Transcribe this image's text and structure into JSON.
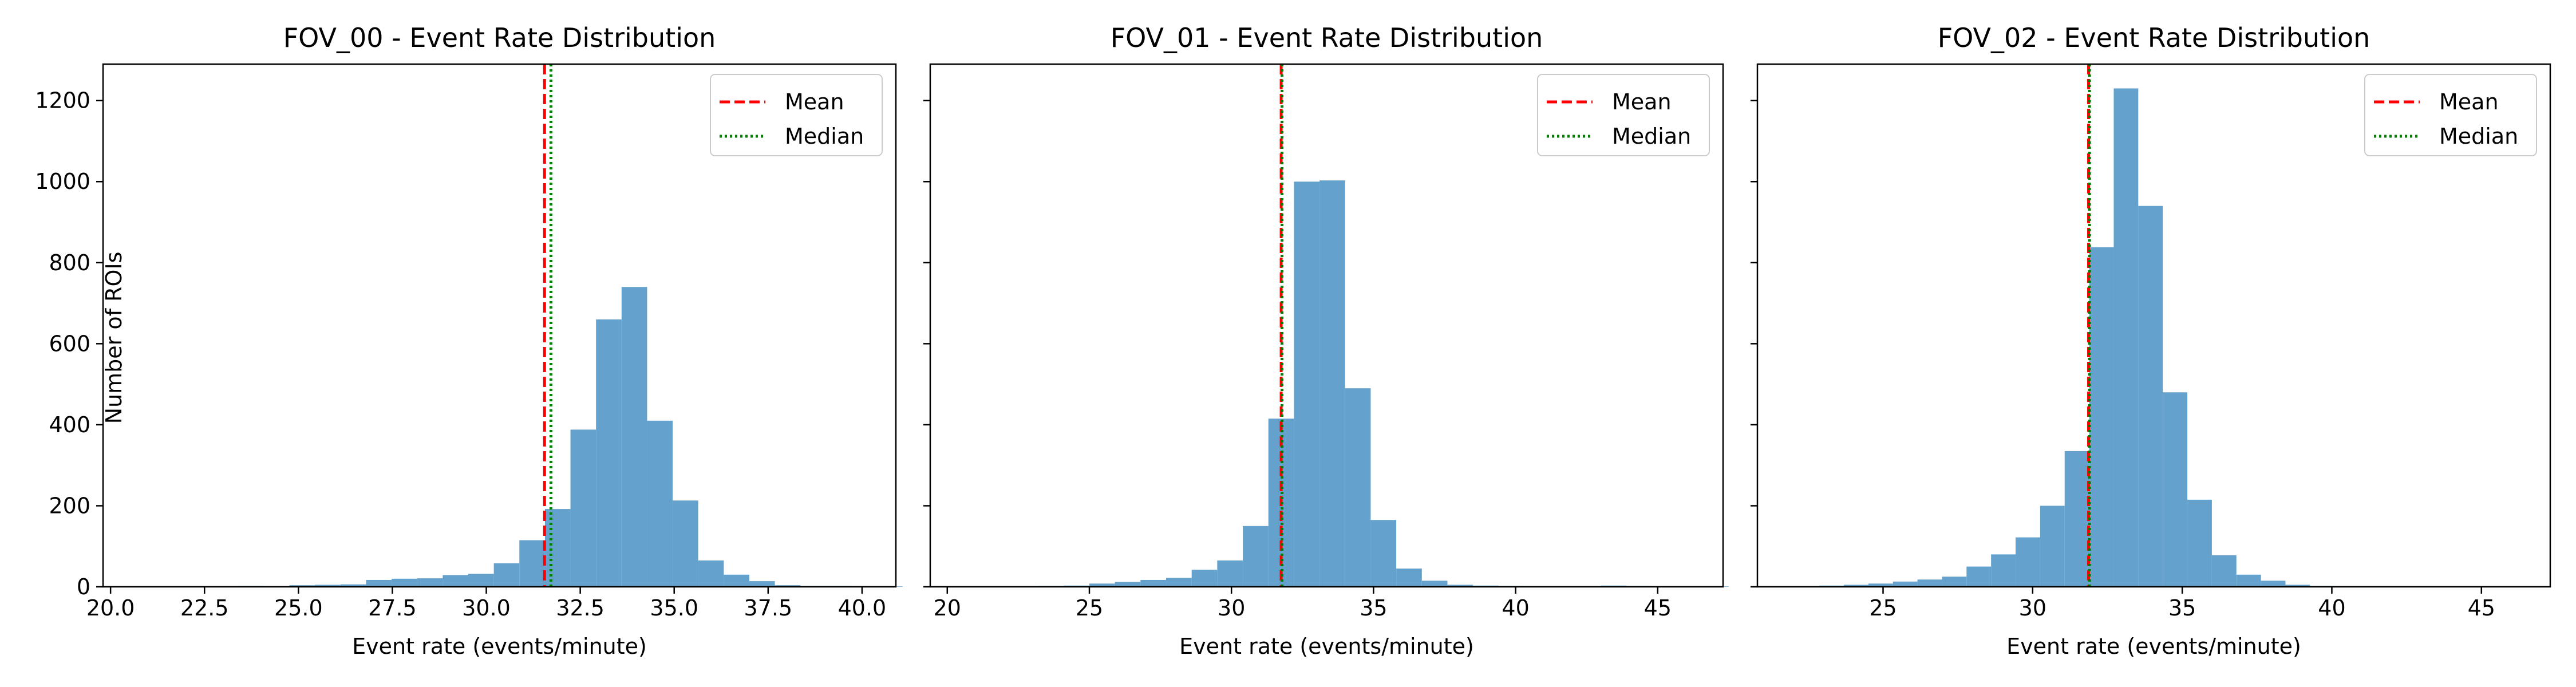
{
  "figure": {
    "shared_ylabel": "Number of ROIs"
  },
  "chart_data": [
    {
      "type": "histogram",
      "title": "FOV_00 - Event Rate Distribution",
      "xlabel": "Event rate (events/minute)",
      "ylabel": "Number of ROIs",
      "xlim": [
        19.8,
        40.9
      ],
      "ylim": [
        0,
        1290
      ],
      "xticks": [
        20.0,
        22.5,
        25.0,
        27.5,
        30.0,
        32.5,
        35.0,
        37.5,
        40.0
      ],
      "xtick_labels": [
        "20.0",
        "22.5",
        "25.0",
        "27.5",
        "30.0",
        "32.5",
        "35.0",
        "37.5",
        "40.0"
      ],
      "yticks": [
        0,
        200,
        400,
        600,
        800,
        1000,
        1200
      ],
      "ytick_labels": [
        "0",
        "200",
        "400",
        "600",
        "800",
        "1000",
        "1200"
      ],
      "bin_start": 20.0,
      "bin_width": 0.68,
      "counts": [
        1,
        0,
        0,
        1,
        1,
        2,
        1,
        4,
        5,
        6,
        17,
        20,
        21,
        29,
        32,
        58,
        115,
        192,
        388,
        660,
        740,
        410,
        213,
        65,
        30,
        14,
        4,
        2,
        2,
        0,
        1
      ],
      "mean": 31.55,
      "median": 31.72,
      "legend": [
        "Mean",
        "Median"
      ],
      "legend_position": "upper right",
      "bar_color": "#64a2cd",
      "mean_color": "#ff0000",
      "median_color": "#008000"
    },
    {
      "type": "histogram",
      "title": "FOV_01 - Event Rate Distribution",
      "xlabel": "Event rate (events/minute)",
      "ylabel": "",
      "xlim": [
        19.4,
        47.3
      ],
      "ylim": [
        0,
        1290
      ],
      "xticks": [
        20,
        25,
        30,
        35,
        40,
        45
      ],
      "xtick_labels": [
        "20",
        "25",
        "30",
        "35",
        "40",
        "45"
      ],
      "yticks": [
        0,
        200,
        400,
        600,
        800,
        1000,
        1200
      ],
      "bin_start": 23.2,
      "bin_width": 0.9,
      "counts": [
        2,
        3,
        8,
        12,
        17,
        22,
        42,
        65,
        150,
        415,
        1000,
        1003,
        490,
        165,
        45,
        15,
        5,
        3,
        2,
        1,
        1,
        0,
        3,
        2,
        1,
        0,
        1
      ],
      "mean": 31.75,
      "median": 31.78,
      "legend": [
        "Mean",
        "Median"
      ],
      "legend_position": "upper right",
      "bar_color": "#64a2cd",
      "mean_color": "#ff0000",
      "median_color": "#008000"
    },
    {
      "type": "histogram",
      "title": "FOV_02 - Event Rate Distribution",
      "xlabel": "Event rate (events/minute)",
      "ylabel": "",
      "xlim": [
        20.8,
        47.3
      ],
      "ylim": [
        0,
        1290
      ],
      "xticks": [
        25,
        30,
        35,
        40,
        45
      ],
      "xtick_labels": [
        "25",
        "30",
        "35",
        "40",
        "45"
      ],
      "yticks": [
        0,
        200,
        400,
        600,
        800,
        1000,
        1200
      ],
      "bin_start": 22.05,
      "bin_width": 0.82,
      "counts": [
        1,
        3,
        5,
        8,
        13,
        18,
        25,
        50,
        80,
        122,
        200,
        335,
        838,
        1230,
        940,
        480,
        215,
        78,
        30,
        15,
        5,
        2,
        1,
        0,
        1,
        0,
        1,
        0,
        1
      ],
      "mean": 31.87,
      "median": 31.9,
      "legend": [
        "Mean",
        "Median"
      ],
      "legend_position": "upper right",
      "bar_color": "#64a2cd",
      "mean_color": "#ff0000",
      "median_color": "#008000"
    }
  ]
}
